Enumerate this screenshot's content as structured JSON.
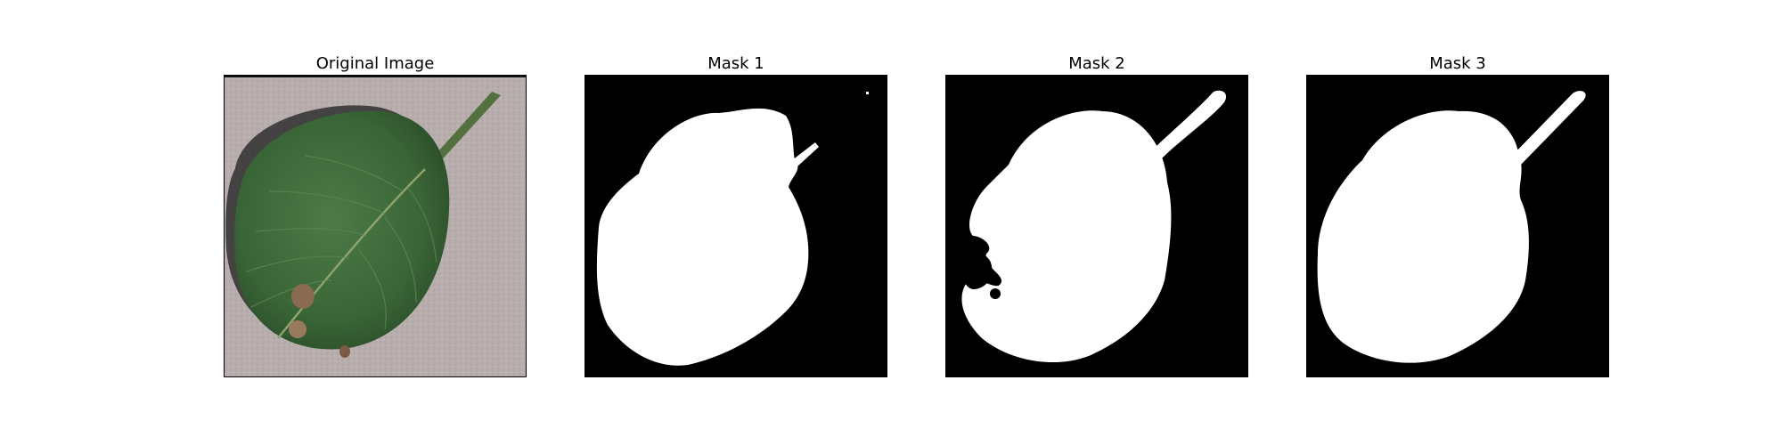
{
  "figure": {
    "panels": [
      {
        "title": "Original Image",
        "kind": "photo"
      },
      {
        "title": "Mask 1",
        "kind": "mask"
      },
      {
        "title": "Mask 2",
        "kind": "mask"
      },
      {
        "title": "Mask 3",
        "kind": "mask"
      }
    ]
  },
  "colors": {
    "background": "#ffffff",
    "mask_background": "#000000",
    "mask_foreground": "#ffffff",
    "leaf_green": "#3f6a3c",
    "leaf_dark": "#2f532d",
    "surface_gray": "#b7adad",
    "lesion_brown": "#8a6a50"
  }
}
